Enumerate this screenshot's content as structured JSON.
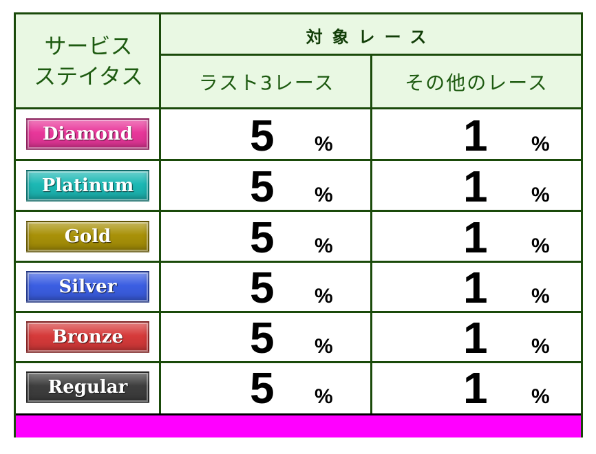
{
  "header": {
    "status_title_line1": "サービス",
    "status_title_line2": "ステイタス",
    "target_title": "対象レース",
    "col_last3": "ラスト3レース",
    "col_other": "その他のレース"
  },
  "rows": [
    {
      "status": "Diamond",
      "color": "#e8379a",
      "last3": "5",
      "other": "1",
      "unit": "%"
    },
    {
      "status": "Platinum",
      "color": "#1cb8b4",
      "last3": "5",
      "other": "1",
      "unit": "%"
    },
    {
      "status": "Gold",
      "color": "#a89108",
      "last3": "5",
      "other": "1",
      "unit": "%"
    },
    {
      "status": "Silver",
      "color": "#3b5ee2",
      "last3": "5",
      "other": "1",
      "unit": "%"
    },
    {
      "status": "Bronze",
      "color": "#d63a3a",
      "last3": "5",
      "other": "1",
      "unit": "%"
    },
    {
      "status": "Regular",
      "color": "#3e3e3e",
      "last3": "5",
      "other": "1",
      "unit": "%"
    }
  ],
  "footer_color": "#ff00ff"
}
